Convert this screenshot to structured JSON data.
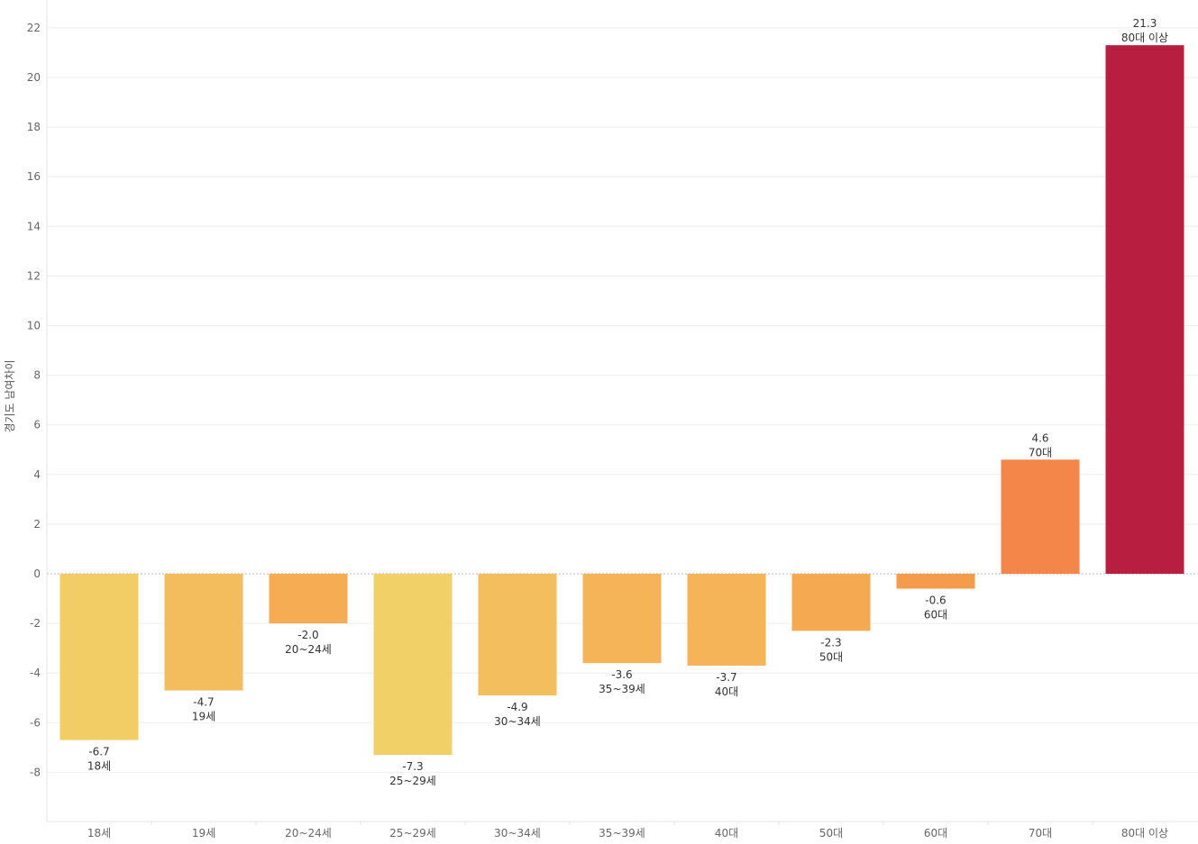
{
  "chart_data": {
    "type": "bar",
    "title": "",
    "xlabel": "",
    "ylabel": "경기도 남여차이",
    "ylim": [
      -10,
      23
    ],
    "yticks": [
      -8,
      -6,
      -4,
      -2,
      0,
      2,
      4,
      6,
      8,
      10,
      12,
      14,
      16,
      18,
      20,
      22
    ],
    "ytick_labels": [
      "-8",
      "-6",
      "-4",
      "-2",
      "0",
      "2",
      "4",
      "6",
      "8",
      "10",
      "12",
      "14",
      "16",
      "18",
      "20",
      "22"
    ],
    "grid": true,
    "legend": "none",
    "categories": [
      "18세",
      "19세",
      "20~24세",
      "25~29세",
      "30~34세",
      "35~39세",
      "40대",
      "50대",
      "60대",
      "70대",
      "80대 이상"
    ],
    "values": [
      -6.7,
      -4.7,
      -2.0,
      -7.3,
      -4.9,
      -3.6,
      -3.7,
      -2.3,
      -0.6,
      4.6,
      21.3
    ],
    "value_labels": [
      "-6.7",
      "-4.7",
      "-2.0",
      "-7.3",
      "-4.9",
      "-3.6",
      "-3.7",
      "-2.3",
      "-0.6",
      "4.6",
      "21.3"
    ],
    "colors": [
      "#F2CD66",
      "#F3BC5C",
      "#F5AC52",
      "#F2D068",
      "#F3BF5E",
      "#F4B457",
      "#F4B457",
      "#F5AA51",
      "#F59B4C",
      "#F4864A",
      "#B71E3F"
    ]
  }
}
